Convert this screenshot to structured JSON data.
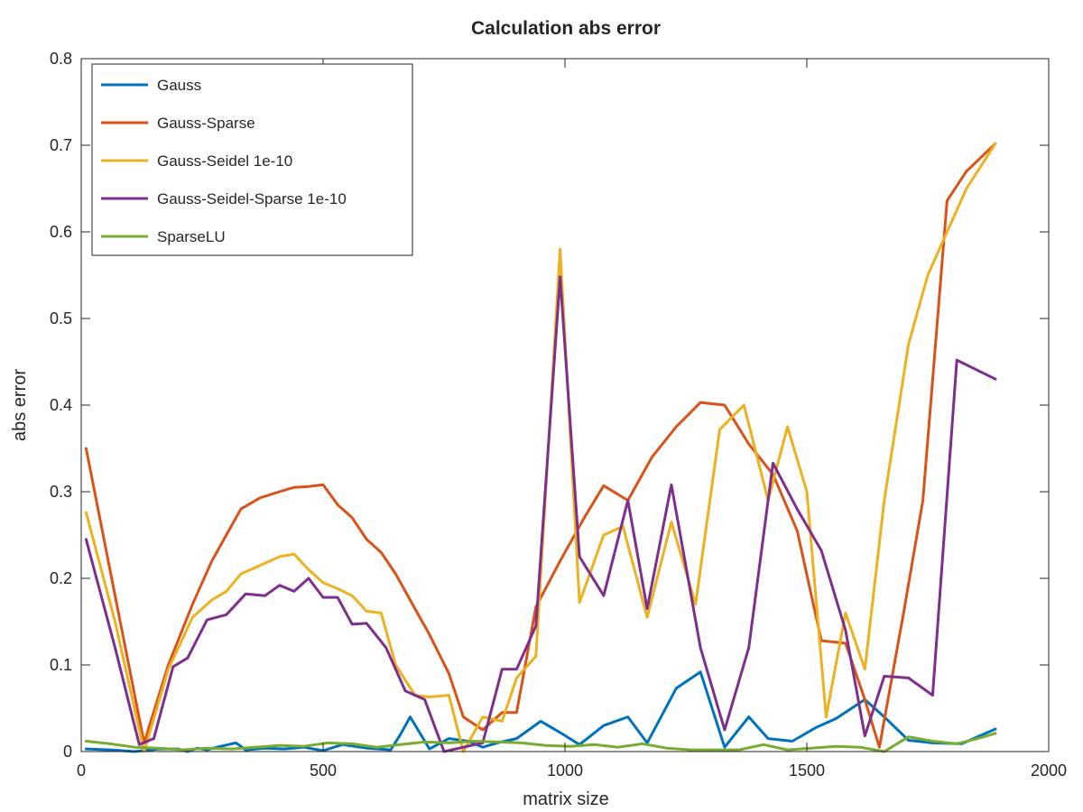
{
  "chart_data": {
    "type": "line",
    "title": "Calculation abs error",
    "xlabel": "matrix size",
    "ylabel": "abs error",
    "xlim": [
      0,
      2000
    ],
    "ylim": [
      0,
      0.8
    ],
    "xticks": [
      0,
      500,
      1000,
      1500,
      2000
    ],
    "xtick_labels": [
      "0",
      "500",
      "1000",
      "1500",
      "2000"
    ],
    "yticks": [
      0,
      0.1,
      0.2,
      0.3,
      0.4,
      0.5,
      0.6,
      0.7,
      0.8
    ],
    "ytick_labels": [
      "0",
      "0.1",
      "0.2",
      "0.3",
      "0.4",
      "0.5",
      "0.6",
      "0.7",
      "0.8"
    ],
    "grid": false,
    "legend_position": "top-left",
    "x": [
      10,
      50,
      90,
      130,
      170,
      210,
      250,
      290,
      330,
      370,
      410,
      450,
      490,
      530,
      570,
      610,
      650,
      690,
      730,
      770,
      810,
      850,
      890,
      930,
      970,
      1010,
      1050,
      1090,
      1130,
      1170,
      1210,
      1250,
      1290,
      1330,
      1370,
      1410,
      1450,
      1490,
      1530,
      1570,
      1610,
      1650,
      1690,
      1730,
      1770,
      1810,
      1850,
      1890
    ],
    "series": [
      {
        "name": "Gauss",
        "color": "#0072bd",
        "x": [
          10,
          60,
          110,
          160,
          200,
          220,
          240,
          260,
          280,
          320,
          340,
          380,
          420,
          460,
          500,
          540,
          590,
          640,
          660,
          680,
          720,
          760,
          800,
          830,
          860,
          900,
          950,
          990,
          1030,
          1080,
          1130,
          1170,
          1230,
          1280,
          1330,
          1380,
          1420,
          1470,
          1520,
          1560,
          1620,
          1660,
          1710,
          1760,
          1820,
          1890
        ],
        "values": [
          0.003,
          0.002,
          0.0,
          0.003,
          0.003,
          0.0,
          0.004,
          0.002,
          0.005,
          0.01,
          0.002,
          0.004,
          0.003,
          0.005,
          0.001,
          0.008,
          0.004,
          0.002,
          0.02,
          0.04,
          0.003,
          0.015,
          0.012,
          0.005,
          0.01,
          0.015,
          0.035,
          0.022,
          0.008,
          0.03,
          0.04,
          0.01,
          0.073,
          0.092,
          0.005,
          0.04,
          0.015,
          0.012,
          0.028,
          0.038,
          0.06,
          0.04,
          0.013,
          0.01,
          0.009,
          0.026
        ]
      },
      {
        "name": "Gauss-Sparse",
        "color": "#d95319",
        "x": [
          10,
          70,
          130,
          180,
          230,
          270,
          300,
          330,
          370,
          410,
          440,
          470,
          500,
          530,
          560,
          590,
          620,
          650,
          690,
          720,
          760,
          790,
          830,
          870,
          900,
          940,
          990,
          1040,
          1080,
          1130,
          1180,
          1230,
          1280,
          1330,
          1380,
          1430,
          1480,
          1530,
          1580,
          1620,
          1650,
          1700,
          1740,
          1790,
          1830,
          1890
        ],
        "values": [
          0.35,
          0.18,
          0.01,
          0.1,
          0.17,
          0.22,
          0.25,
          0.28,
          0.293,
          0.3,
          0.305,
          0.306,
          0.308,
          0.285,
          0.27,
          0.245,
          0.23,
          0.205,
          0.165,
          0.135,
          0.09,
          0.04,
          0.025,
          0.045,
          0.045,
          0.167,
          0.22,
          0.27,
          0.307,
          0.29,
          0.34,
          0.375,
          0.403,
          0.4,
          0.355,
          0.32,
          0.255,
          0.128,
          0.125,
          0.06,
          0.005,
          0.16,
          0.29,
          0.636,
          0.67,
          0.702
        ]
      },
      {
        "name": "Gauss-Seidel 1e-10",
        "color": "#edb120",
        "x": [
          10,
          70,
          130,
          180,
          230,
          270,
          300,
          330,
          370,
          410,
          440,
          470,
          500,
          530,
          560,
          590,
          620,
          650,
          690,
          720,
          760,
          790,
          830,
          870,
          900,
          940,
          990,
          1030,
          1080,
          1120,
          1170,
          1220,
          1270,
          1320,
          1370,
          1420,
          1460,
          1500,
          1540,
          1580,
          1620,
          1660,
          1710,
          1750,
          1790,
          1830,
          1890
        ],
        "values": [
          0.276,
          0.15,
          0.0,
          0.095,
          0.155,
          0.175,
          0.185,
          0.205,
          0.215,
          0.225,
          0.228,
          0.21,
          0.195,
          0.188,
          0.18,
          0.162,
          0.16,
          0.1,
          0.065,
          0.063,
          0.065,
          0.0,
          0.04,
          0.035,
          0.085,
          0.11,
          0.58,
          0.172,
          0.25,
          0.26,
          0.155,
          0.265,
          0.17,
          0.372,
          0.4,
          0.29,
          0.375,
          0.3,
          0.04,
          0.16,
          0.095,
          0.29,
          0.47,
          0.55,
          0.6,
          0.65,
          0.702
        ]
      },
      {
        "name": "Gauss-Seidel-Sparse 1e-10",
        "color": "#7e2f8e",
        "x": [
          10,
          70,
          120,
          150,
          190,
          220,
          260,
          300,
          340,
          380,
          410,
          440,
          470,
          500,
          530,
          560,
          590,
          630,
          670,
          710,
          750,
          790,
          830,
          870,
          900,
          940,
          990,
          1030,
          1080,
          1130,
          1170,
          1220,
          1280,
          1330,
          1380,
          1430,
          1480,
          1530,
          1580,
          1620,
          1660,
          1710,
          1760,
          1810,
          1890
        ],
        "values": [
          0.245,
          0.12,
          0.008,
          0.015,
          0.098,
          0.108,
          0.152,
          0.158,
          0.182,
          0.18,
          0.192,
          0.185,
          0.2,
          0.178,
          0.178,
          0.147,
          0.148,
          0.12,
          0.07,
          0.06,
          0.0,
          0.005,
          0.01,
          0.095,
          0.095,
          0.145,
          0.548,
          0.225,
          0.18,
          0.29,
          0.165,
          0.308,
          0.12,
          0.025,
          0.12,
          0.333,
          0.28,
          0.232,
          0.14,
          0.018,
          0.087,
          0.085,
          0.065,
          0.452,
          0.43
        ]
      },
      {
        "name": "SparseLU",
        "color": "#77ac30",
        "x": [
          10,
          60,
          110,
          160,
          210,
          260,
          310,
          360,
          410,
          460,
          510,
          560,
          610,
          660,
          710,
          760,
          810,
          860,
          910,
          960,
          1010,
          1060,
          1110,
          1160,
          1210,
          1260,
          1310,
          1360,
          1410,
          1460,
          1510,
          1560,
          1610,
          1660,
          1710,
          1760,
          1810,
          1860,
          1890
        ],
        "values": [
          0.012,
          0.009,
          0.005,
          0.004,
          0.002,
          0.004,
          0.003,
          0.005,
          0.007,
          0.006,
          0.01,
          0.009,
          0.005,
          0.008,
          0.011,
          0.01,
          0.012,
          0.011,
          0.01,
          0.007,
          0.006,
          0.008,
          0.005,
          0.009,
          0.004,
          0.002,
          0.002,
          0.002,
          0.008,
          0.002,
          0.004,
          0.006,
          0.005,
          0.0,
          0.017,
          0.012,
          0.009,
          0.016,
          0.021
        ]
      }
    ]
  }
}
